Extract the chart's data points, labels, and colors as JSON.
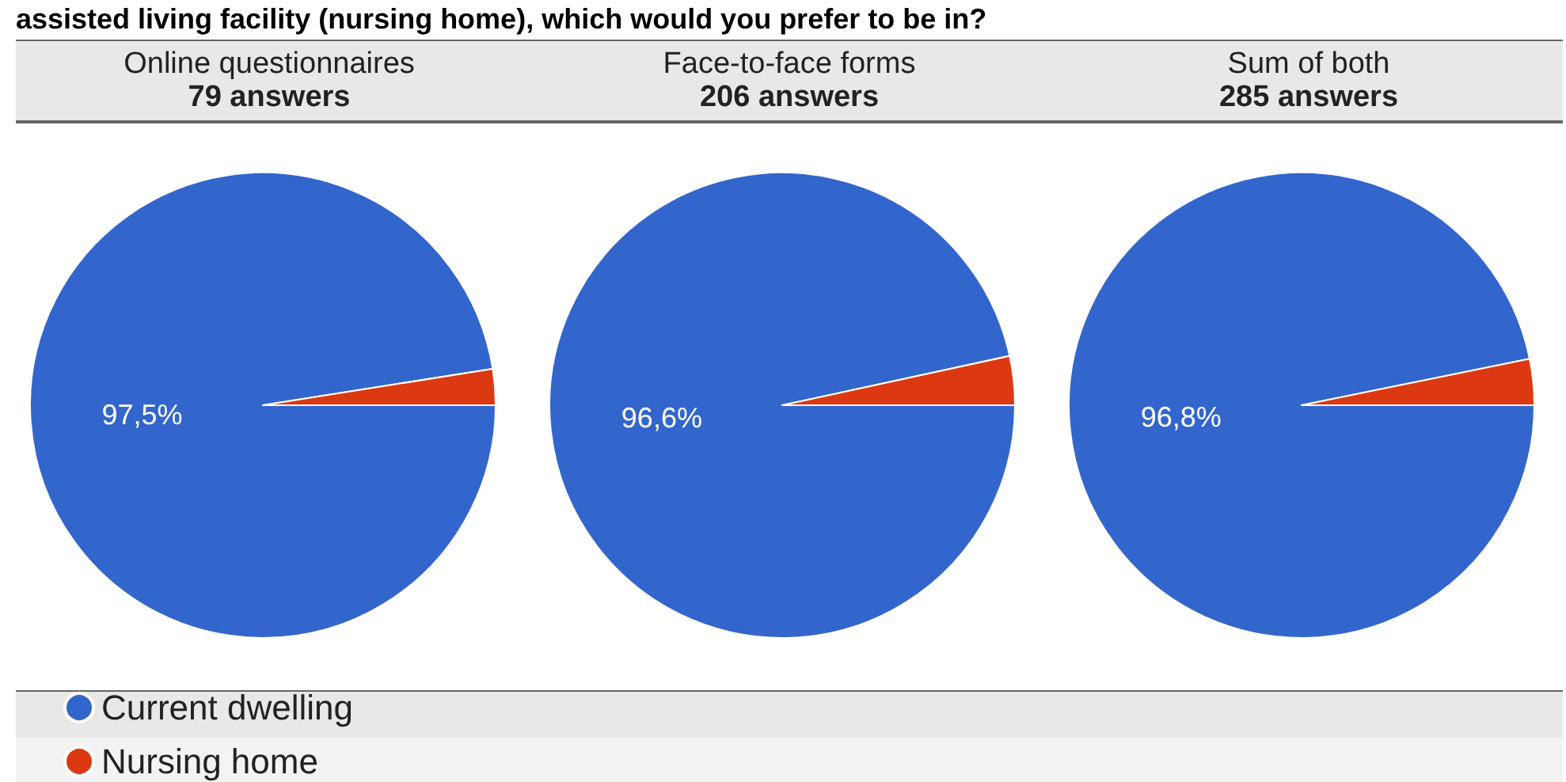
{
  "chart_data": [
    {
      "type": "pie",
      "title": "Online questionnaires",
      "subtitle": "79 answers",
      "annotations": [
        "assisted living facility (nursing home), which would you prefer to be in?"
      ],
      "categories": [
        "Current dwelling",
        "Nursing home"
      ],
      "values": [
        97.5,
        2.5
      ],
      "colors": [
        "#3366cc",
        "#dc3912"
      ],
      "value_labels": [
        "97,5%",
        null
      ],
      "legend": "bottom left"
    },
    {
      "type": "pie",
      "title": "Face-to-face forms",
      "subtitle": "206 answers",
      "categories": [
        null,
        null
      ],
      "values": [
        96.6,
        3.4
      ],
      "colors": [
        "#3366cc",
        "#dc3912"
      ],
      "value_labels": [
        "96,6%",
        null
      ]
    },
    {
      "type": "pie",
      "title": "Sum of both",
      "subtitle": "285 answers",
      "categories": [
        null,
        null
      ],
      "values": [
        96.8,
        3.2
      ],
      "colors": [
        "#3366cc",
        "#dc3912"
      ],
      "value_labels": [
        "96,8%",
        null
      ]
    }
  ]
}
